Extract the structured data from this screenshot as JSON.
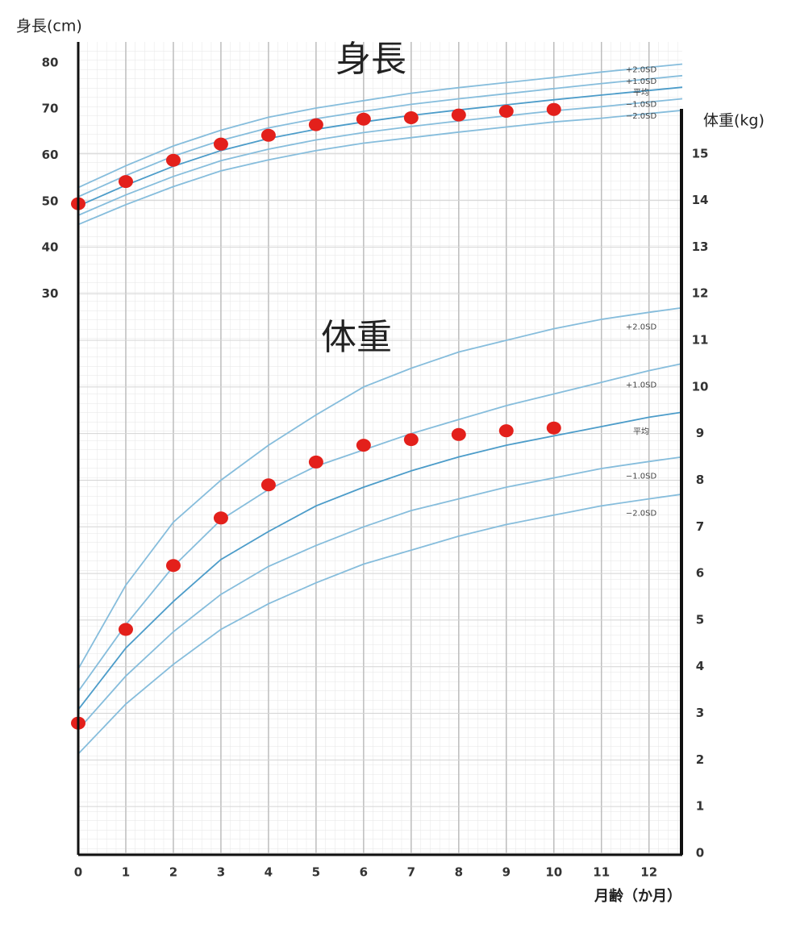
{
  "chart_data": {
    "type": "line",
    "annotations": [
      "身長",
      "体重"
    ],
    "x_label": "月齢（か月）",
    "y_label": "身長(cm)",
    "y2_label": "体重(kg)",
    "xlim": [
      0,
      12.7
    ],
    "xticks": [
      0,
      1,
      2,
      3,
      4,
      5,
      6,
      7,
      8,
      9,
      10,
      11,
      12
    ],
    "ylim": [
      -91,
      84.5
    ],
    "yticks": [
      30,
      40,
      50,
      60,
      70,
      80
    ],
    "y2lim": [
      0,
      17.4
    ],
    "y2ticks": [
      0,
      1,
      2,
      3,
      4,
      5,
      6,
      7,
      8,
      9,
      10,
      11,
      12,
      13,
      14,
      15
    ],
    "grid": true,
    "x": [
      0,
      1,
      2,
      3,
      4,
      5,
      6,
      7,
      8,
      9,
      10,
      11,
      12,
      12.7
    ],
    "series": [
      {
        "name": "+2.0SD",
        "color": "#86bddc",
        "values": [
          53.0,
          57.7,
          62.0,
          65.4,
          68.2,
          70.2,
          71.8,
          73.4,
          74.6,
          75.7,
          76.8,
          78.0,
          79.0,
          79.7
        ]
      },
      {
        "name": "+1.0SD",
        "color": "#86bddc",
        "values": [
          51.0,
          55.6,
          59.8,
          63.2,
          65.9,
          67.9,
          69.5,
          71.0,
          72.2,
          73.3,
          74.4,
          75.5,
          76.5,
          77.2
        ]
      },
      {
        "name": "平均",
        "color": "#4c9cc9",
        "values": [
          49.0,
          53.5,
          57.6,
          61.0,
          63.6,
          65.6,
          67.2,
          68.6,
          69.8,
          70.9,
          72.0,
          73.0,
          74.0,
          74.7
        ]
      },
      {
        "name": "−1.0SD",
        "color": "#86bddc",
        "values": [
          47.0,
          51.4,
          55.4,
          58.8,
          61.3,
          63.3,
          64.9,
          66.2,
          67.4,
          68.5,
          69.6,
          70.5,
          71.5,
          72.2
        ]
      },
      {
        "name": "−2.0SD",
        "color": "#86bddc",
        "values": [
          45.0,
          49.3,
          53.2,
          56.6,
          59.0,
          61.0,
          62.6,
          63.8,
          65.0,
          66.1,
          67.2,
          68.0,
          69.0,
          69.7
        ]
      },
      {
        "name": "+2.0SD",
        "color": "#86bddc",
        "axis": "y2",
        "values": [
          3.95,
          5.75,
          7.1,
          8.0,
          8.75,
          9.4,
          10.0,
          10.4,
          10.75,
          11.0,
          11.25,
          11.45,
          11.6,
          11.7
        ]
      },
      {
        "name": "+1.0SD",
        "color": "#86bddc",
        "axis": "y2",
        "values": [
          3.47,
          4.9,
          6.15,
          7.15,
          7.8,
          8.3,
          8.65,
          9.0,
          9.3,
          9.6,
          9.85,
          10.1,
          10.35,
          10.5
        ]
      },
      {
        "name": "平均",
        "color": "#4c9cc9",
        "axis": "y2",
        "values": [
          3.08,
          4.4,
          5.4,
          6.3,
          6.9,
          7.45,
          7.85,
          8.2,
          8.5,
          8.75,
          8.95,
          9.15,
          9.35,
          9.46
        ]
      },
      {
        "name": "−1.0SD",
        "color": "#86bddc",
        "axis": "y2",
        "values": [
          2.65,
          3.8,
          4.75,
          5.55,
          6.15,
          6.6,
          7.0,
          7.35,
          7.6,
          7.85,
          8.05,
          8.25,
          8.4,
          8.5
        ]
      },
      {
        "name": "−2.0SD",
        "color": "#86bddc",
        "axis": "y2",
        "values": [
          2.13,
          3.2,
          4.05,
          4.8,
          5.35,
          5.8,
          6.2,
          6.5,
          6.8,
          7.05,
          7.25,
          7.45,
          7.6,
          7.7
        ]
      }
    ],
    "measurements": [
      {
        "marker": "dot",
        "color": "#e3201b",
        "x": [
          0,
          1,
          2,
          3,
          4,
          5,
          6,
          7,
          8,
          9,
          10
        ],
        "values": [
          49.5,
          54.3,
          58.9,
          62.4,
          64.3,
          66.6,
          67.8,
          68.1,
          68.7,
          69.5,
          69.9
        ]
      },
      {
        "marker": "dot",
        "color": "#e3201b",
        "axis": "y2",
        "x": [
          0,
          1,
          2,
          3,
          4,
          5,
          6,
          7,
          8,
          9,
          10
        ],
        "values": [
          2.79,
          4.8,
          6.17,
          7.19,
          7.9,
          8.39,
          8.75,
          8.87,
          8.98,
          9.06,
          9.12
        ]
      }
    ]
  }
}
